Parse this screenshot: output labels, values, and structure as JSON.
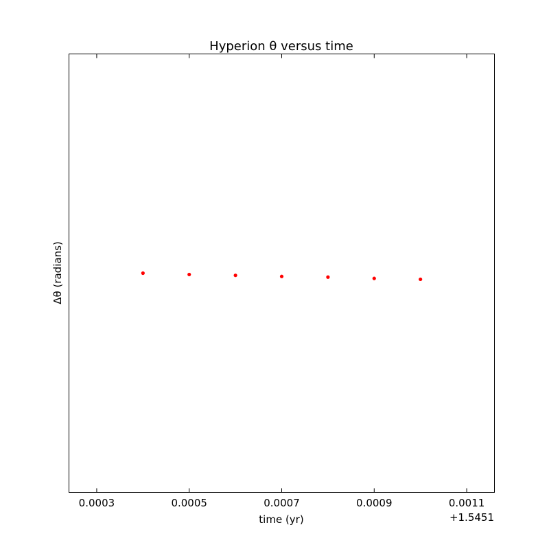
{
  "chart_data": {
    "type": "scatter",
    "title": "Hyperion θ versus time",
    "xlabel": "time (yr)",
    "ylabel": "Δθ (radians)",
    "x_offset_label": "+1.5451",
    "xlim": [
      0.00024,
      0.00116
    ],
    "ylim": [
      -1.0,
      1.0
    ],
    "x_ticks": [
      0.0003,
      0.0005,
      0.0007,
      0.0009,
      0.0011
    ],
    "x_tick_labels": [
      "0.0003",
      "0.0005",
      "0.0007",
      "0.0009",
      "0.0011"
    ],
    "y_ticks": [],
    "grid": false,
    "marker_color": "#ff0000",
    "series": [
      {
        "x": [
          0.0004,
          0.0005,
          0.0006,
          0.0007,
          0.0008,
          0.0009,
          0.001
        ],
        "y": [
          0.0,
          -0.006,
          -0.01,
          -0.015,
          -0.018,
          -0.024,
          -0.028
        ]
      }
    ]
  }
}
